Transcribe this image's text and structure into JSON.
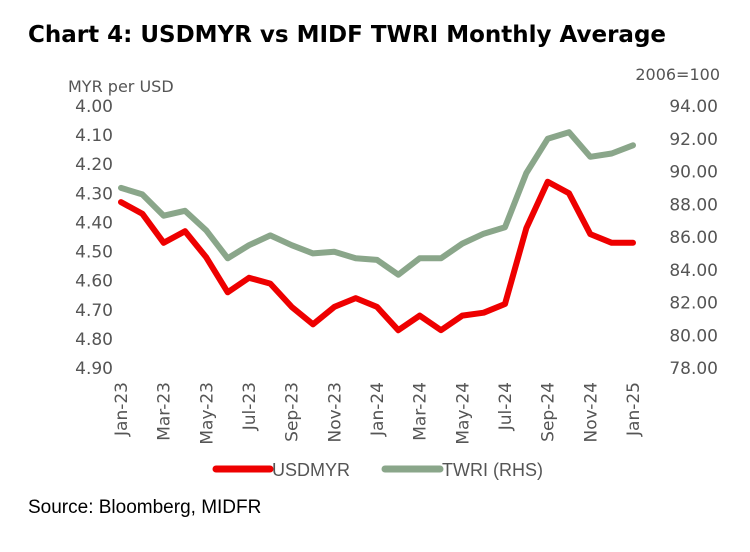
{
  "title": "Chart 4: USDMYR vs MIDF TWRI Monthly Average",
  "source": "Source: Bloomberg, MIDFR",
  "chart_data": {
    "type": "line",
    "title": "Chart 4: USDMYR vs MIDF TWRI Monthly Average",
    "x": [
      "Jan-23",
      "Feb-23",
      "Mar-23",
      "Apr-23",
      "May-23",
      "Jun-23",
      "Jul-23",
      "Aug-23",
      "Sep-23",
      "Oct-23",
      "Nov-23",
      "Dec-23",
      "Jan-24",
      "Feb-24",
      "Mar-24",
      "Apr-24",
      "May-24",
      "Jun-24",
      "Jul-24",
      "Aug-24",
      "Sep-24",
      "Oct-24",
      "Nov-24",
      "Dec-24",
      "Jan-25"
    ],
    "x_tick_labels": [
      "Jan-23",
      "Mar-23",
      "May-23",
      "Jul-23",
      "Sep-23",
      "Nov-23",
      "Jan-24",
      "Mar-24",
      "May-24",
      "Jul-24",
      "Sep-24",
      "Nov-24",
      "Jan-25"
    ],
    "y_left": {
      "label": "MYR per USD",
      "range": [
        4.0,
        4.9
      ],
      "inverted": true,
      "ticks": [
        "4.00",
        "4.10",
        "4.20",
        "4.30",
        "4.40",
        "4.50",
        "4.60",
        "4.70",
        "4.80",
        "4.90"
      ]
    },
    "y_right": {
      "label": "2006=100",
      "range": [
        78,
        94
      ],
      "ticks": [
        "94.00",
        "92.00",
        "90.00",
        "88.00",
        "86.00",
        "84.00",
        "82.00",
        "80.00",
        "78.00"
      ]
    },
    "series": [
      {
        "name": "USDMYR",
        "axis": "left",
        "color": "#ee0000",
        "values": [
          4.33,
          4.37,
          4.47,
          4.43,
          4.52,
          4.64,
          4.59,
          4.61,
          4.69,
          4.75,
          4.69,
          4.66,
          4.69,
          4.77,
          4.72,
          4.77,
          4.72,
          4.71,
          4.68,
          4.42,
          4.26,
          4.3,
          4.44,
          4.47,
          4.47
        ]
      },
      {
        "name": "TWRI (RHS)",
        "axis": "right",
        "color": "#8aa68a",
        "values": [
          89.0,
          88.6,
          87.3,
          87.6,
          86.4,
          84.7,
          85.5,
          86.1,
          85.5,
          85.0,
          85.1,
          84.7,
          84.6,
          83.7,
          84.7,
          84.7,
          85.6,
          86.2,
          86.6,
          89.9,
          92.0,
          92.4,
          90.9,
          91.1,
          91.6
        ]
      }
    ],
    "grid": false,
    "legend_position": "bottom"
  }
}
